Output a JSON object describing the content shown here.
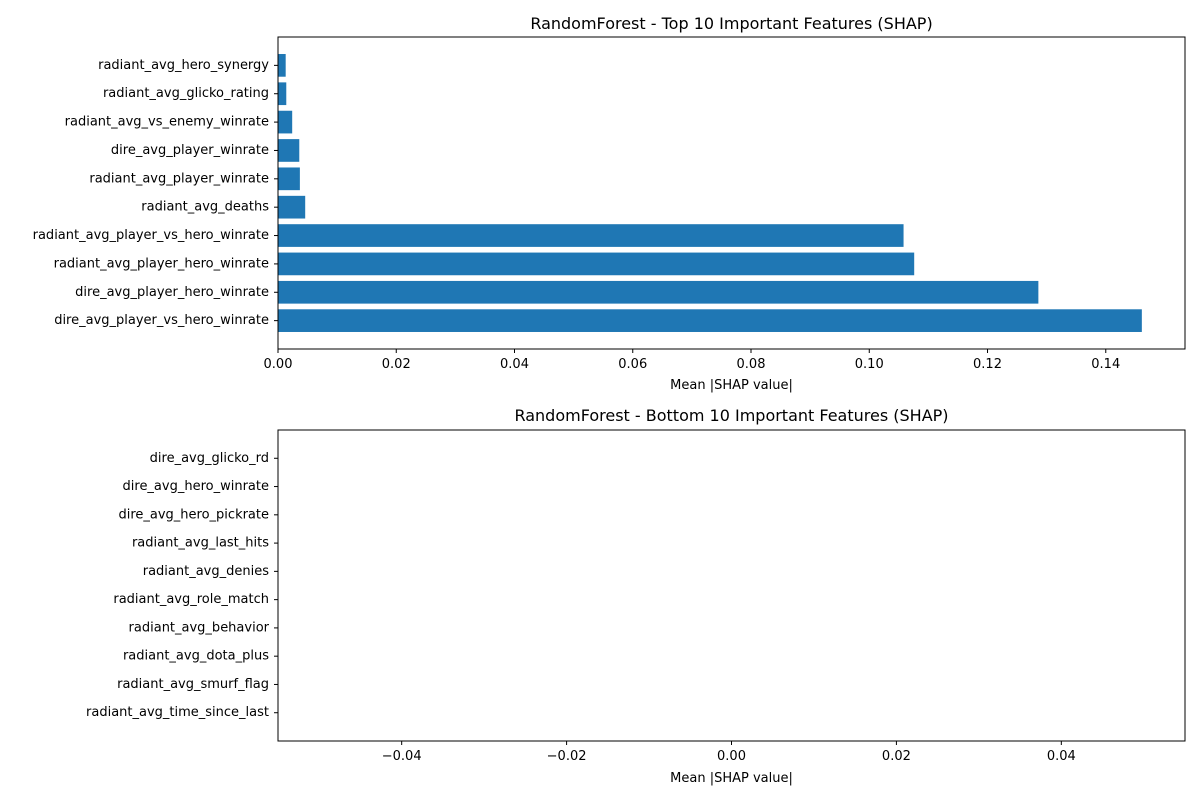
{
  "chart_data": [
    {
      "type": "bar",
      "orientation": "horizontal",
      "title": "RandomForest - Top 10 Important Features (SHAP)",
      "xlabel": "Mean |SHAP value|",
      "ylabel": "",
      "categories": [
        "dire_avg_player_vs_hero_winrate",
        "dire_avg_player_hero_winrate",
        "radiant_avg_player_hero_winrate",
        "radiant_avg_player_vs_hero_winrate",
        "radiant_avg_deaths",
        "radiant_avg_player_winrate",
        "dire_avg_player_winrate",
        "radiant_avg_vs_enemy_winrate",
        "radiant_avg_glicko_rating",
        "radiant_avg_hero_synergy"
      ],
      "values": [
        0.1461,
        0.1286,
        0.1076,
        0.1058,
        0.0046,
        0.0037,
        0.0036,
        0.0024,
        0.0014,
        0.0013
      ],
      "xlim": [
        0.0,
        0.1534
      ],
      "xticks": [
        "0.00",
        "0.02",
        "0.04",
        "0.06",
        "0.08",
        "0.10",
        "0.12",
        "0.14"
      ],
      "xtick_values": [
        0.0,
        0.02,
        0.04,
        0.06,
        0.08,
        0.1,
        0.12,
        0.14
      ],
      "color": "#1f77b4",
      "grid": false,
      "legend": "none"
    },
    {
      "type": "bar",
      "orientation": "horizontal",
      "title": "RandomForest - Bottom 10 Important Features (SHAP)",
      "xlabel": "Mean |SHAP value|",
      "ylabel": "",
      "categories": [
        "radiant_avg_time_since_last",
        "radiant_avg_smurf_flag",
        "radiant_avg_dota_plus",
        "radiant_avg_behavior",
        "radiant_avg_role_match",
        "radiant_avg_denies",
        "radiant_avg_last_hits",
        "dire_avg_hero_pickrate",
        "dire_avg_hero_winrate",
        "dire_avg_glicko_rd"
      ],
      "values": [
        0,
        0,
        0,
        0,
        0,
        0,
        0,
        0,
        0,
        0
      ],
      "xlim": [
        -0.055,
        0.055
      ],
      "xticks": [
        "−0.04",
        "−0.02",
        "0.00",
        "0.02",
        "0.04"
      ],
      "xtick_values": [
        -0.04,
        -0.02,
        0.0,
        0.02,
        0.04
      ],
      "color": "#1f77b4",
      "grid": false,
      "legend": "none"
    }
  ]
}
